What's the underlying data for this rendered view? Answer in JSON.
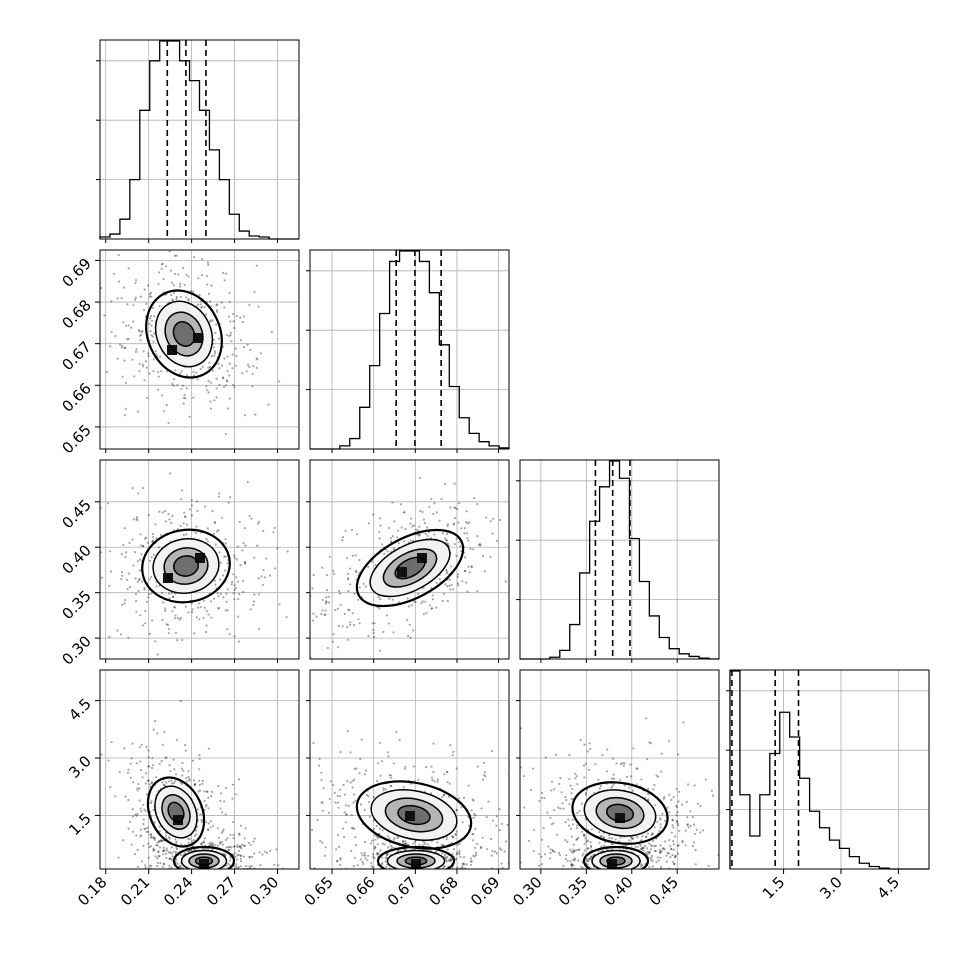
{
  "chart_data": {
    "type": "corner",
    "grid": true,
    "quantile_lines": "dashed",
    "parameters": [
      {
        "range": [
          0.176,
          0.315
        ],
        "ticks": [
          "0.18",
          "0.21",
          "0.24",
          "0.27",
          "0.30"
        ],
        "quantiles": [
          0.223,
          0.236,
          0.25
        ],
        "hist": {
          "edges": [
            0.176,
            0.315
          ],
          "counts": [
            0.2,
            0.5,
            2,
            6,
            13,
            18,
            20,
            20,
            18,
            16,
            13,
            9,
            6,
            2.5,
            0.8,
            0.3,
            0.2,
            0,
            0,
            0
          ]
        }
      },
      {
        "range": [
          0.6447,
          0.6925
        ],
        "ticks": [
          "0.65",
          "0.66",
          "0.67",
          "0.68",
          "0.69"
        ],
        "quantiles": [
          0.6654,
          0.6699,
          0.6762
        ],
        "hist": {
          "edges": [
            0.6447,
            0.6925
          ],
          "counts": [
            0,
            0,
            0,
            0.3,
            1,
            4,
            8,
            13,
            18,
            19,
            19,
            18,
            15,
            10,
            6,
            3,
            1.5,
            0.7,
            0.3,
            0.1
          ]
        }
      },
      {
        "range": [
          0.277,
          0.496
        ],
        "ticks": [
          "0.30",
          "0.35",
          "0.40",
          "0.45"
        ],
        "quantiles": [
          0.36,
          0.379,
          0.398
        ],
        "hist": {
          "edges": [
            0.277,
            0.496
          ],
          "counts": [
            0,
            0,
            0,
            0.2,
            1,
            4,
            10,
            16,
            20,
            23,
            21,
            14,
            9,
            5,
            2.5,
            1.2,
            0.6,
            0.3,
            0.1,
            0
          ]
        }
      },
      {
        "range": [
          0.1,
          5.3
        ],
        "ticks": [
          "1.5",
          "3.0",
          "4.5"
        ],
        "quantiles": [
          0.15,
          1.28,
          1.89
        ],
        "hist": {
          "edges": [
            0.1,
            5.3
          ],
          "counts": [
            24,
            9,
            4,
            9,
            14,
            19,
            16,
            11,
            7,
            5,
            3.5,
            2.5,
            1.5,
            0.7,
            0.3,
            0.1,
            0,
            0,
            0,
            0
          ]
        }
      }
    ]
  }
}
